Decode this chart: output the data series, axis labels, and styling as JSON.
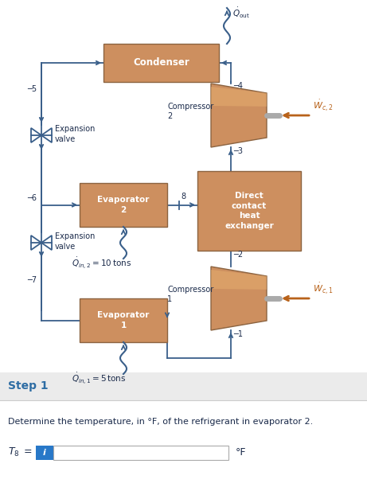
{
  "bg_color": "#ffffff",
  "box_fill": "#cd8f5f",
  "box_edge": "#8b6340",
  "line_color": "#3a5f8a",
  "orange_arrow": "#b8621a",
  "text_dark": "#1a2a4a",
  "step_color": "#2e6da4",
  "blue_btn": "#2878c8",
  "gray_bg": "#ebebeb",
  "title": "Step 1",
  "question": "Determine the temperature, in °F, of the refrigerant in evaporator 2.",
  "answer_unit": "°F"
}
